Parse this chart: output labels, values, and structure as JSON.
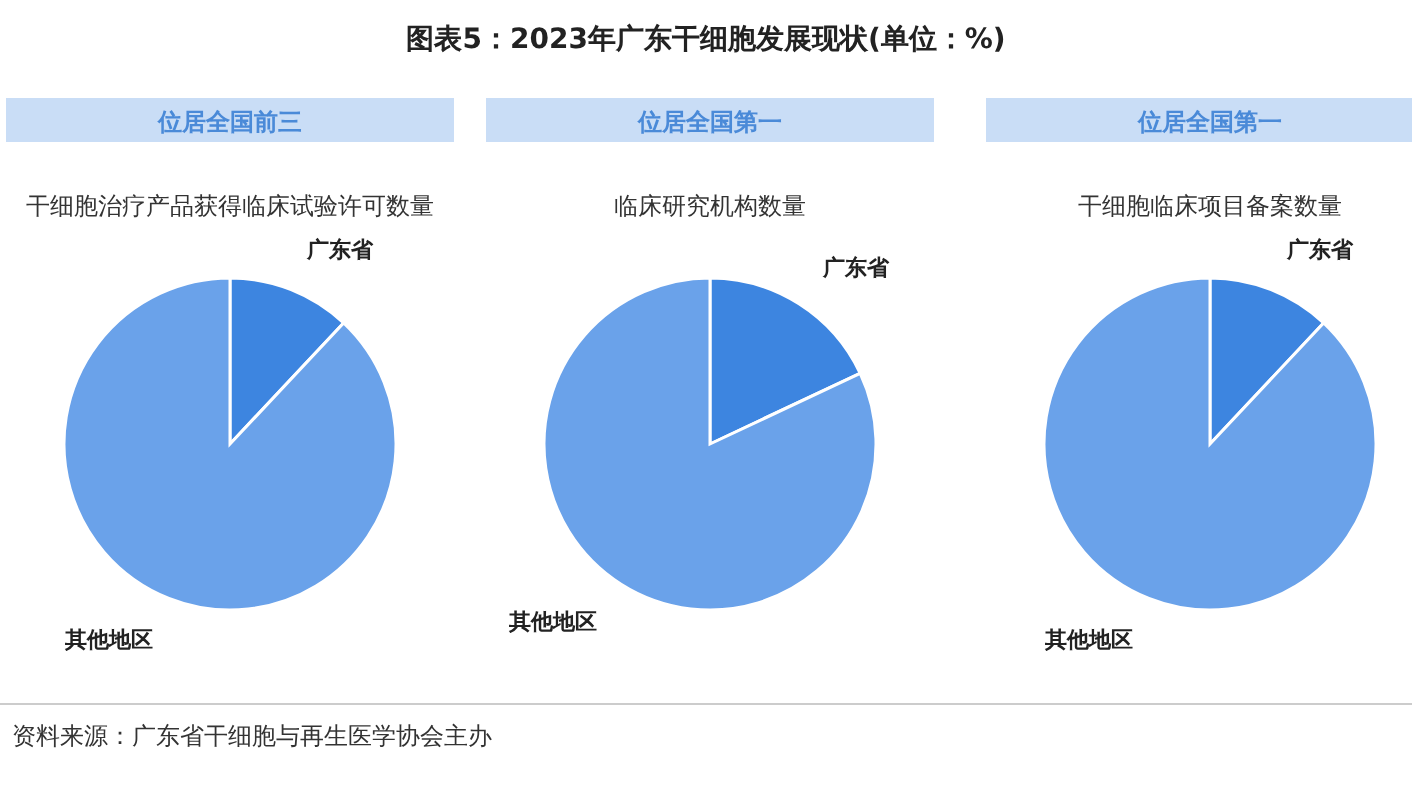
{
  "chart_data": [
    {
      "type": "pie",
      "subtitle": "位居全国前三",
      "title": "干细胞治疗产品获得临床试验许可数量",
      "categories": [
        "广东省",
        "其他地区"
      ],
      "values": [
        12,
        88
      ],
      "colors": [
        "#3d85e0",
        "#6aa2ea"
      ],
      "annotations": [
        "图表5：2023年广东干细胞发展现状(单位：%)",
        "资料来源：广东省干细胞与再生医学协会主办"
      ]
    },
    {
      "type": "pie",
      "subtitle": "位居全国第一",
      "title": "临床研究机构数量",
      "categories": [
        "广东省",
        "其他地区"
      ],
      "values": [
        18,
        82
      ],
      "colors": [
        "#3d85e0",
        "#6aa2ea"
      ]
    },
    {
      "type": "pie",
      "subtitle": "位居全国第一",
      "title": "干细胞临床项目备案数量",
      "categories": [
        "广东省",
        "其他地区"
      ],
      "values": [
        12,
        88
      ],
      "colors": [
        "#3d85e0",
        "#6aa2ea"
      ]
    }
  ]
}
